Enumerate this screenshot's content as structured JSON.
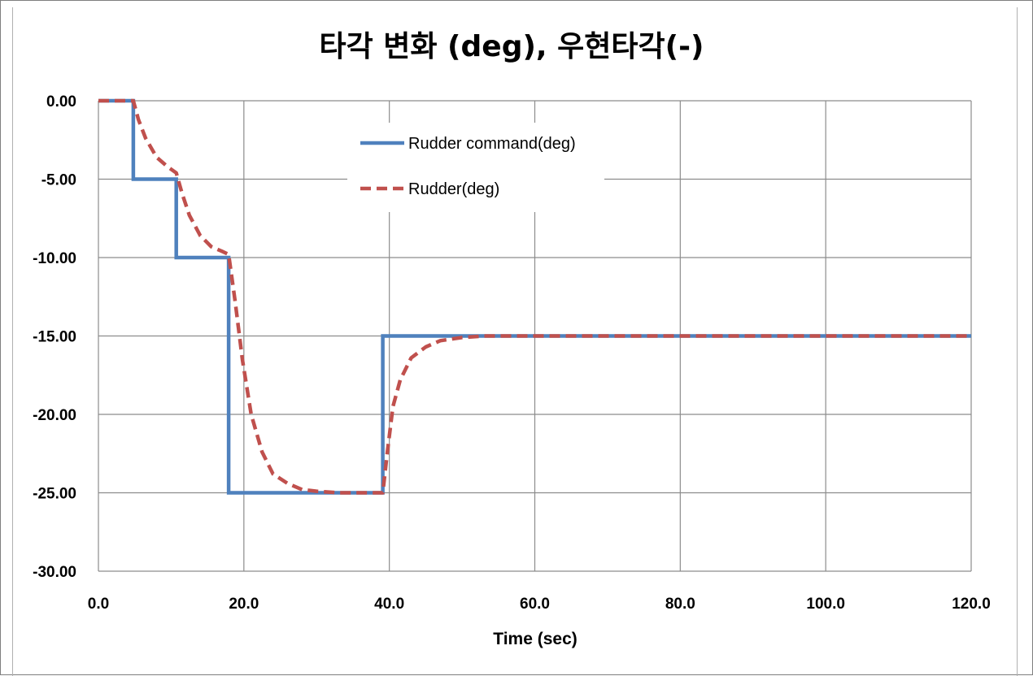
{
  "chart_data": {
    "type": "line",
    "title": "타각 변화 (deg), 우현타각(-)",
    "xlabel": "Time (sec)",
    "ylabel": "",
    "xlim": [
      0,
      120
    ],
    "ylim": [
      -30,
      0
    ],
    "x_ticks": [
      "0.0",
      "20.0",
      "40.0",
      "60.0",
      "80.0",
      "100.0",
      "120.0"
    ],
    "y_ticks": [
      "0.00",
      "-5.00",
      "-10.00",
      "-15.00",
      "-20.00",
      "-25.00",
      "-30.00"
    ],
    "grid": true,
    "legend_position": "top-center",
    "series": [
      {
        "name": "Rudder command(deg)",
        "color": "#4f81bd",
        "style": "solid",
        "x": [
          0,
          4.8,
          4.8,
          10.7,
          10.7,
          17.9,
          17.9,
          39.1,
          39.1,
          120
        ],
        "y": [
          0,
          0,
          -5,
          -5,
          -10,
          -10,
          -25,
          -25,
          -15,
          -15
        ]
      },
      {
        "name": "Rudder(deg)",
        "color": "#c0504d",
        "style": "dashed",
        "x": [
          0,
          4.8,
          5.5,
          6.5,
          8,
          9.5,
          10.7,
          11.5,
          12.5,
          14,
          15.5,
          17,
          17.9,
          18.8,
          19.8,
          21,
          22.5,
          24,
          26,
          28,
          30,
          33,
          36,
          39.1,
          39.7,
          40.5,
          41.5,
          43,
          45,
          47,
          50,
          53,
          60,
          120
        ],
        "y": [
          0,
          0,
          -1.2,
          -2.4,
          -3.6,
          -4.2,
          -4.6,
          -5.9,
          -7.3,
          -8.6,
          -9.3,
          -9.6,
          -9.8,
          -12.8,
          -16.5,
          -20.0,
          -22.4,
          -23.8,
          -24.4,
          -24.8,
          -24.9,
          -25.0,
          -25.0,
          -25.0,
          -22.5,
          -19.5,
          -17.8,
          -16.4,
          -15.7,
          -15.3,
          -15.1,
          -15.0,
          -15.0,
          -15.0
        ]
      }
    ]
  }
}
